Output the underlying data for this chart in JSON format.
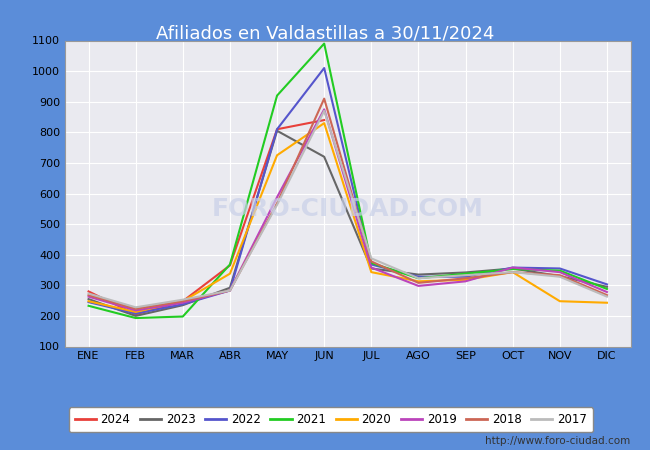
{
  "title": "Afiliados en Valdastillas a 30/11/2024",
  "header_bg": "#5b8dd9",
  "ylim": [
    100,
    1100
  ],
  "yticks": [
    100,
    200,
    300,
    400,
    500,
    600,
    700,
    800,
    900,
    1000,
    1100
  ],
  "months": [
    "ENE",
    "FEB",
    "MAR",
    "ABR",
    "MAY",
    "JUN",
    "JUL",
    "AGO",
    "SEP",
    "OCT",
    "NOV",
    "DIC"
  ],
  "series": {
    "2024": {
      "color": "#e8403a",
      "data": [
        280,
        205,
        248,
        365,
        810,
        840,
        null,
        null,
        null,
        null,
        null,
        null
      ]
    },
    "2023": {
      "color": "#666666",
      "data": [
        255,
        200,
        235,
        292,
        805,
        720,
        355,
        335,
        342,
        355,
        330,
        295
      ]
    },
    "2022": {
      "color": "#5555cc",
      "data": [
        245,
        208,
        238,
        283,
        810,
        1010,
        368,
        328,
        328,
        358,
        355,
        303
      ]
    },
    "2021": {
      "color": "#22cc22",
      "data": [
        233,
        193,
        198,
        368,
        920,
        1090,
        373,
        323,
        338,
        353,
        348,
        288
      ]
    },
    "2020": {
      "color": "#ffaa00",
      "data": [
        248,
        213,
        248,
        338,
        725,
        830,
        343,
        313,
        318,
        343,
        248,
        243
      ]
    },
    "2019": {
      "color": "#bb44bb",
      "data": [
        263,
        218,
        243,
        283,
        588,
        875,
        358,
        298,
        313,
        358,
        343,
        278
      ]
    },
    "2018": {
      "color": "#cc6655",
      "data": [
        268,
        223,
        248,
        283,
        568,
        910,
        378,
        308,
        323,
        343,
        333,
        268
      ]
    },
    "2017": {
      "color": "#bbbbbb",
      "data": [
        273,
        228,
        253,
        283,
        563,
        870,
        388,
        323,
        333,
        343,
        328,
        263
      ]
    }
  },
  "legend_order": [
    "2024",
    "2023",
    "2022",
    "2021",
    "2020",
    "2019",
    "2018",
    "2017"
  ],
  "watermark": "http://www.foro-ciudad.com",
  "plot_bg": "#eaeaf0",
  "outer_bg": "#5b8dd9"
}
